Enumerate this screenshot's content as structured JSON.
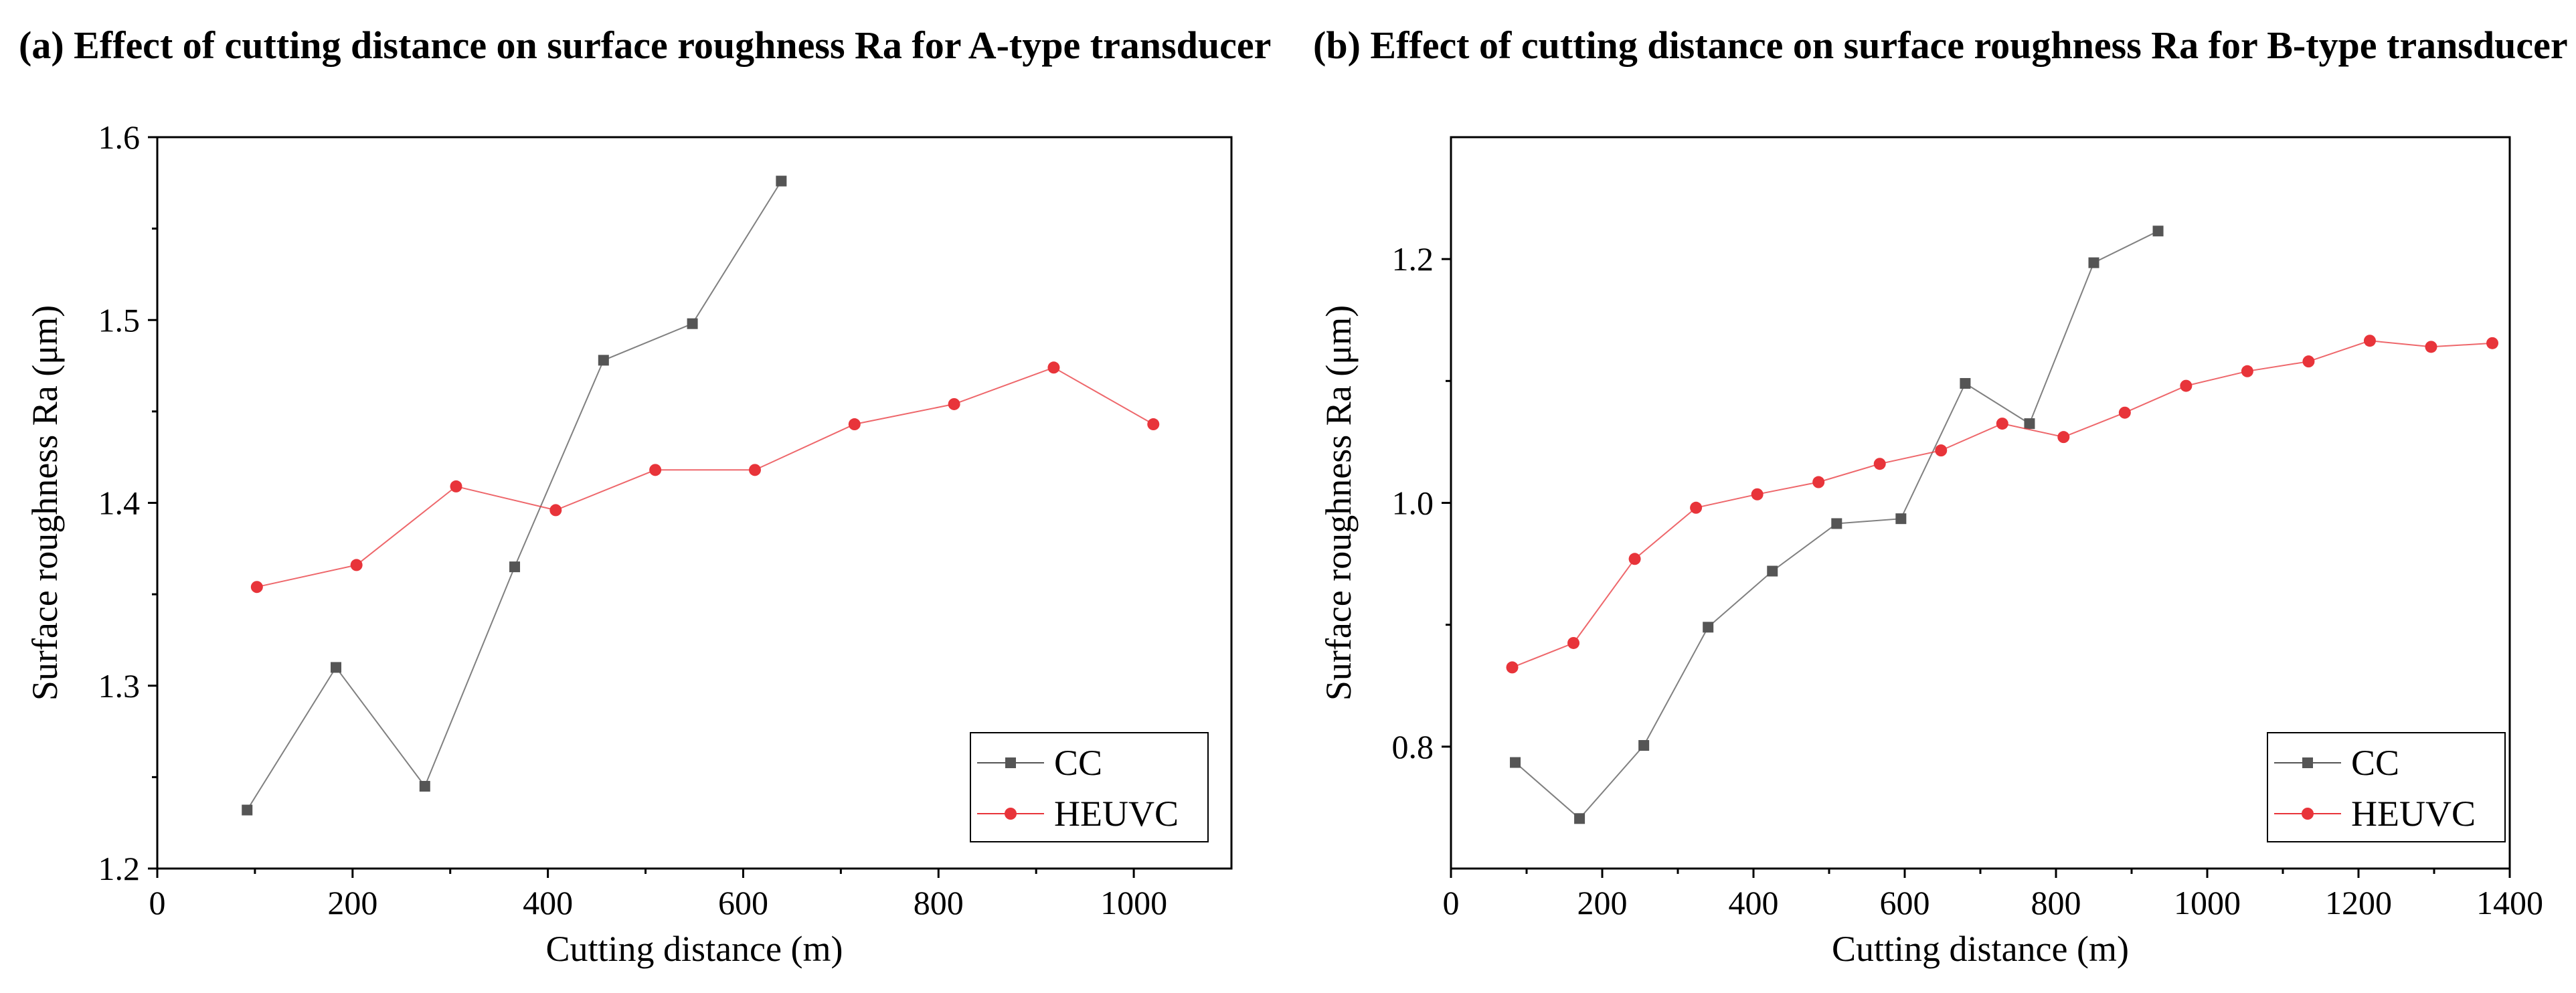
{
  "chart_data": [
    {
      "type": "line",
      "panel": "a",
      "title": "(a) Effect of cutting distance on surface roughness Ra for A-type transducer",
      "xlabel": "Cutting distance (m)",
      "ylabel": "Surface roughness Ra (μm)",
      "xlim": [
        0,
        1100
      ],
      "ylim": [
        1.2,
        1.6
      ],
      "xticks": [
        0,
        200,
        400,
        600,
        800,
        1000
      ],
      "yticks": [
        1.2,
        1.3,
        1.4,
        1.5,
        1.6
      ],
      "xtick_labels": [
        "0",
        "200",
        "400",
        "600",
        "800",
        "1000"
      ],
      "ytick_labels": [
        "1.2",
        "1.3",
        "1.4",
        "1.5",
        "1.6"
      ],
      "grid": false,
      "legend_position": "bottom-right",
      "series": [
        {
          "name": "CC",
          "color": "#555555",
          "marker": "square",
          "x": [
            92,
            183,
            274,
            366,
            457,
            548,
            639
          ],
          "y": [
            1.232,
            1.31,
            1.245,
            1.365,
            1.478,
            1.498,
            1.576
          ]
        },
        {
          "name": "HEUVC",
          "color": "#e8343a",
          "marker": "circle",
          "x": [
            102,
            204,
            306,
            408,
            510,
            612,
            714,
            816,
            918,
            1020
          ],
          "y": [
            1.354,
            1.366,
            1.409,
            1.396,
            1.418,
            1.418,
            1.443,
            1.454,
            1.474,
            1.443
          ]
        }
      ]
    },
    {
      "type": "line",
      "panel": "b",
      "title": "(b) Effect of cutting distance on surface roughness Ra for  B-type transducer",
      "xlabel": "Cutting distance (m)",
      "ylabel": "Surface roughness Ra (μm)",
      "xlim": [
        0,
        1400
      ],
      "ylim": [
        0.7,
        1.3
      ],
      "xticks": [
        0,
        200,
        400,
        600,
        800,
        1000,
        1200,
        1400
      ],
      "yticks": [
        0.8,
        1.0,
        1.2
      ],
      "minor_yticks": [
        0.9,
        1.1
      ],
      "xtick_labels": [
        "0",
        "200",
        "400",
        "600",
        "800",
        "1000",
        "1200",
        "1400"
      ],
      "ytick_labels": [
        "0.8",
        "1.0",
        "1.2"
      ],
      "grid": false,
      "legend_position": "bottom-right",
      "series": [
        {
          "name": "CC",
          "color": "#555555",
          "marker": "square",
          "x": [
            85,
            170,
            255,
            340,
            425,
            510,
            595,
            680,
            765,
            850,
            935
          ],
          "y": [
            0.787,
            0.741,
            0.801,
            0.898,
            0.944,
            0.983,
            0.987,
            1.098,
            1.065,
            1.197,
            1.223
          ]
        },
        {
          "name": "HEUVC",
          "color": "#e8343a",
          "marker": "circle",
          "x": [
            81,
            162,
            243,
            324,
            405,
            486,
            567,
            648,
            729,
            810,
            891,
            972,
            1053,
            1134,
            1215,
            1296,
            1377
          ],
          "y": [
            0.865,
            0.885,
            0.954,
            0.996,
            1.007,
            1.017,
            1.032,
            1.043,
            1.065,
            1.054,
            1.074,
            1.096,
            1.108,
            1.116,
            1.133,
            1.128,
            1.131
          ]
        }
      ]
    }
  ]
}
